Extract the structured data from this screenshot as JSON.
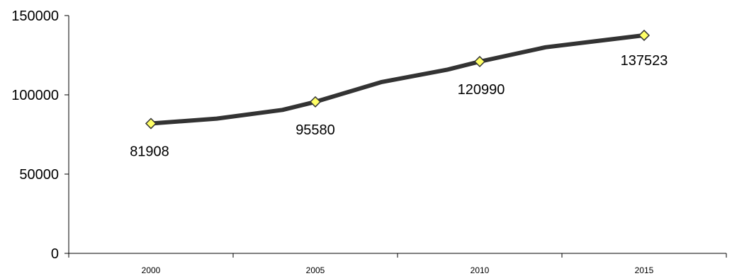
{
  "chart_data": {
    "type": "line",
    "x": [
      2000,
      2002,
      2004,
      2005,
      2007,
      2009,
      2010,
      2012,
      2015
    ],
    "series": [
      {
        "values": [
          81908,
          85000,
          90500,
          95580,
          108000,
          115800,
          120990,
          130000,
          137523
        ]
      }
    ],
    "marked_points": [
      {
        "x": 2000,
        "y": 81908,
        "label": "81908"
      },
      {
        "x": 2005,
        "y": 95580,
        "label": "95580"
      },
      {
        "x": 2010,
        "y": 120990,
        "label": "120990"
      },
      {
        "x": 2015,
        "y": 137523,
        "label": "137523"
      }
    ],
    "x_tick_labels": [
      "2000",
      "2005",
      "2010",
      "2015"
    ],
    "y_tick_labels": [
      "0",
      "50000",
      "100000",
      "150000"
    ],
    "y_ticks": [
      0,
      50000,
      100000,
      150000
    ],
    "xlim": [
      1997.5,
      2017.5
    ],
    "ylim": [
      0,
      150000
    ],
    "title": "",
    "xlabel": "",
    "ylabel": "",
    "grid": false,
    "legend": "none",
    "colors": {
      "line": "#333333",
      "marker_fill": "#ffff66",
      "marker_stroke": "#333333",
      "axis": "#000000"
    }
  }
}
